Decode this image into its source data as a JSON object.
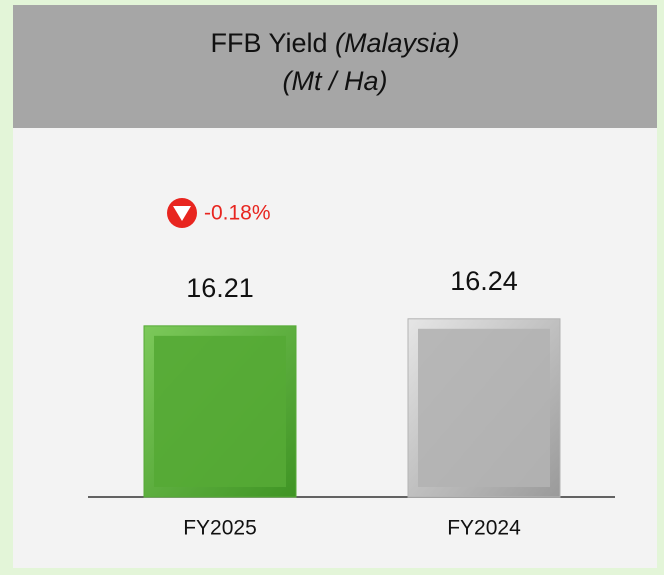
{
  "chart_data": {
    "type": "bar",
    "title": "FFB Yield",
    "title_region": "(Malaysia)",
    "subtitle": "(Mt / Ha)",
    "annotation": "-0.18%",
    "categories": [
      "FY2025",
      "FY2024"
    ],
    "values": [
      16.21,
      16.24
    ],
    "colors": [
      "#55aa35",
      "#b3b3b3"
    ],
    "ylim": [
      15.48,
      16.96
    ]
  }
}
